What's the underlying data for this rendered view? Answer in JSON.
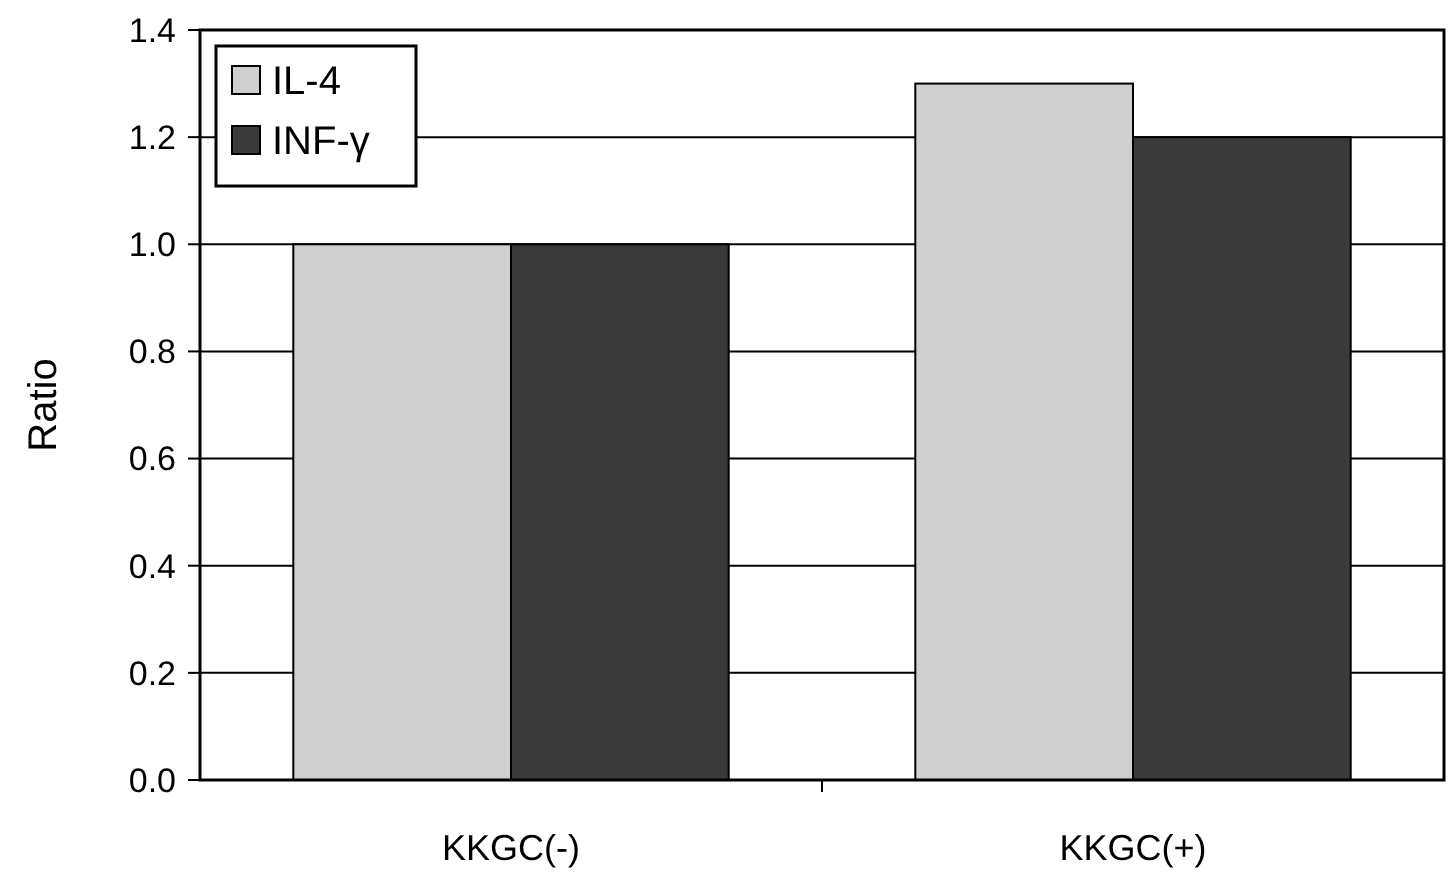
{
  "chart_data": {
    "type": "bar",
    "ylabel": "Ratio",
    "categories": [
      "KKGC(-)",
      "KKGC(+)"
    ],
    "series": [
      {
        "name": "IL-4",
        "color": "#cfcfcf",
        "values": [
          1.0,
          1.3
        ]
      },
      {
        "name": "INF-γ",
        "color": "#3a3a3a",
        "values": [
          1.0,
          1.2
        ]
      }
    ],
    "ylim": [
      0,
      1.4
    ],
    "yticks": [
      {
        "value": 0,
        "label": "0.0"
      },
      {
        "value": 0.2,
        "label": "0.2"
      },
      {
        "value": 0.4,
        "label": "0.4"
      },
      {
        "value": 0.6,
        "label": "0.6"
      },
      {
        "value": 0.8,
        "label": "0.8"
      },
      {
        "value": 1,
        "label": "1.0"
      },
      {
        "value": 1.2,
        "label": "1.2"
      },
      {
        "value": 1.4,
        "label": "1.4"
      }
    ],
    "grid": "y",
    "legend": "top left"
  }
}
